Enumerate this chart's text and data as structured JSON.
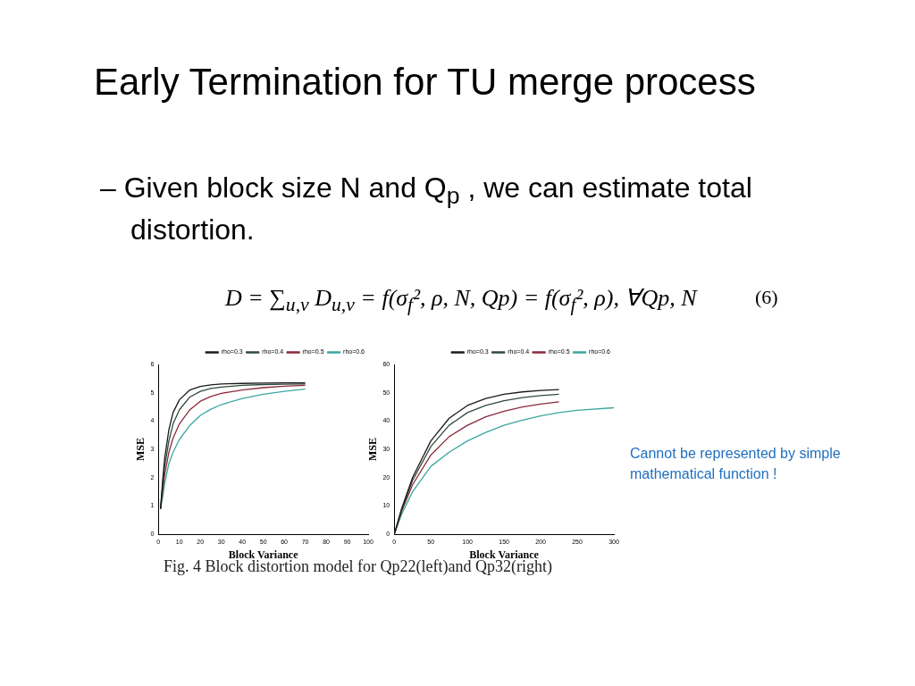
{
  "chart_data": [
    {
      "type": "line",
      "xlabel": "Block Variance",
      "ylabel": "MSE",
      "xlim": [
        0,
        100
      ],
      "ylim": [
        0,
        6
      ],
      "xticks": [
        0,
        10,
        20,
        30,
        40,
        50,
        60,
        70,
        80,
        90,
        100
      ],
      "yticks": [
        0,
        1,
        2,
        3,
        4,
        5,
        6
      ],
      "grid": false,
      "legend": "top right",
      "marker": "none",
      "line_style": "solid",
      "x": [
        1,
        2,
        3,
        5,
        7,
        10,
        15,
        20,
        25,
        30,
        40,
        50,
        60,
        70
      ],
      "series": [
        {
          "name": "rho=0.3",
          "color": "#1a1a1a",
          "values": [
            0.9,
            1.9,
            2.7,
            3.7,
            4.3,
            4.75,
            5.1,
            5.22,
            5.28,
            5.31,
            5.33,
            5.34,
            5.35,
            5.35
          ]
        },
        {
          "name": "rho=0.4",
          "color": "#2f4a3c",
          "values": [
            0.9,
            1.7,
            2.4,
            3.3,
            3.9,
            4.4,
            4.85,
            5.05,
            5.15,
            5.2,
            5.26,
            5.29,
            5.3,
            5.31
          ]
        },
        {
          "name": "rho=0.5",
          "color": "#8b2a3a",
          "values": [
            0.9,
            1.5,
            2.1,
            2.9,
            3.4,
            3.9,
            4.4,
            4.7,
            4.87,
            4.98,
            5.1,
            5.18,
            5.23,
            5.26
          ]
        },
        {
          "name": "rho=0.6",
          "color": "#3aa8a0",
          "values": [
            0.9,
            1.3,
            1.8,
            2.5,
            2.9,
            3.35,
            3.85,
            4.2,
            4.42,
            4.58,
            4.8,
            4.95,
            5.05,
            5.13
          ]
        }
      ],
      "annotations": [
        "Early Termination for TU merge process",
        "– Given block size N and Q$_{p}$ , we can estimate total distortion.",
        "D = ∑$_{u,v}$ D$_{u,v}$ = f(σ$_{f}$², ρ, N, Qp) = f(σ$_{f}$², ρ), ∀Qp, N",
        "(6)",
        "Fig. 4 Block distortion model for Qp22(left)and Qp32(right)",
        "Cannot be represented by simple mathematical function !"
      ]
    },
    {
      "type": "line",
      "xlabel": "Block Variance",
      "ylabel": "MSE",
      "xlim": [
        0,
        300
      ],
      "ylim": [
        0,
        60
      ],
      "xticks": [
        0,
        50,
        100,
        150,
        200,
        250,
        300
      ],
      "yticks": [
        0,
        10,
        20,
        30,
        40,
        50,
        60
      ],
      "grid": false,
      "legend": "top right",
      "marker": "none",
      "line_style": "solid",
      "x": [
        0,
        10,
        25,
        50,
        75,
        100,
        125,
        150,
        175,
        200,
        225
      ],
      "series": [
        {
          "name": "rho=0.3",
          "color": "#1a1a1a",
          "values": [
            0,
            9,
            20,
            33,
            41,
            45.5,
            48,
            49.5,
            50.3,
            50.8,
            51.1
          ]
        },
        {
          "name": "rho=0.4",
          "color": "#2f4a3c",
          "values": [
            0,
            8.5,
            19,
            31,
            38.5,
            43,
            45.5,
            47.2,
            48.3,
            49,
            49.5
          ]
        },
        {
          "name": "rho=0.5",
          "color": "#8b2a3a",
          "values": [
            0,
            8,
            17.5,
            28,
            34.5,
            38.5,
            41.5,
            43.5,
            45,
            46,
            46.8
          ]
        },
        {
          "name": "rho=0.6",
          "color": "#3aa8a0",
          "x": [
            0,
            10,
            25,
            50,
            75,
            100,
            125,
            150,
            175,
            200,
            225,
            250,
            300
          ],
          "values": [
            0,
            7,
            15,
            24,
            29,
            33,
            36,
            38.5,
            40.3,
            41.8,
            43,
            43.8,
            44.7
          ]
        }
      ]
    }
  ]
}
